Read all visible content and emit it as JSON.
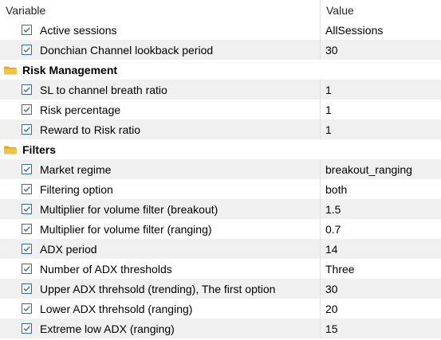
{
  "columns": {
    "variable": "Variable",
    "value": "Value"
  },
  "rows": [
    {
      "type": "param",
      "label": "Active sessions",
      "value": "AllSessions"
    },
    {
      "type": "param",
      "label": "Donchian Channel lookback period",
      "value": "30"
    },
    {
      "type": "group",
      "label": "Risk Management"
    },
    {
      "type": "param",
      "label": "SL to channel breath ratio",
      "value": "1"
    },
    {
      "type": "param",
      "label": "Risk percentage",
      "value": "1"
    },
    {
      "type": "param",
      "label": "Reward to Risk ratio",
      "value": "1"
    },
    {
      "type": "group",
      "label": "Filters"
    },
    {
      "type": "param",
      "label": "Market regime",
      "value": "breakout_ranging"
    },
    {
      "type": "param",
      "label": "Filtering option",
      "value": "both"
    },
    {
      "type": "param",
      "label": "Multiplier for volume filter (breakout)",
      "value": "1.5"
    },
    {
      "type": "param",
      "label": "Multiplier for volume filter (ranging)",
      "value": "0.7"
    },
    {
      "type": "param",
      "label": "ADX period",
      "value": "14"
    },
    {
      "type": "param",
      "label": "Number of ADX thresholds",
      "value": "Three"
    },
    {
      "type": "param",
      "label": "Upper ADX threhsold (trending), The first option",
      "value": "30"
    },
    {
      "type": "param",
      "label": "Lower ADX threhsold (ranging)",
      "value": "20"
    },
    {
      "type": "param",
      "label": "Extreme low ADX (ranging)",
      "value": "15"
    }
  ],
  "icons": {
    "checkbox": "checkbox-checked-icon",
    "folder": "folder-icon"
  },
  "colors": {
    "row_alt": "#f0f0f0",
    "check": "#2b6fb6",
    "folder": "#f5c242"
  }
}
